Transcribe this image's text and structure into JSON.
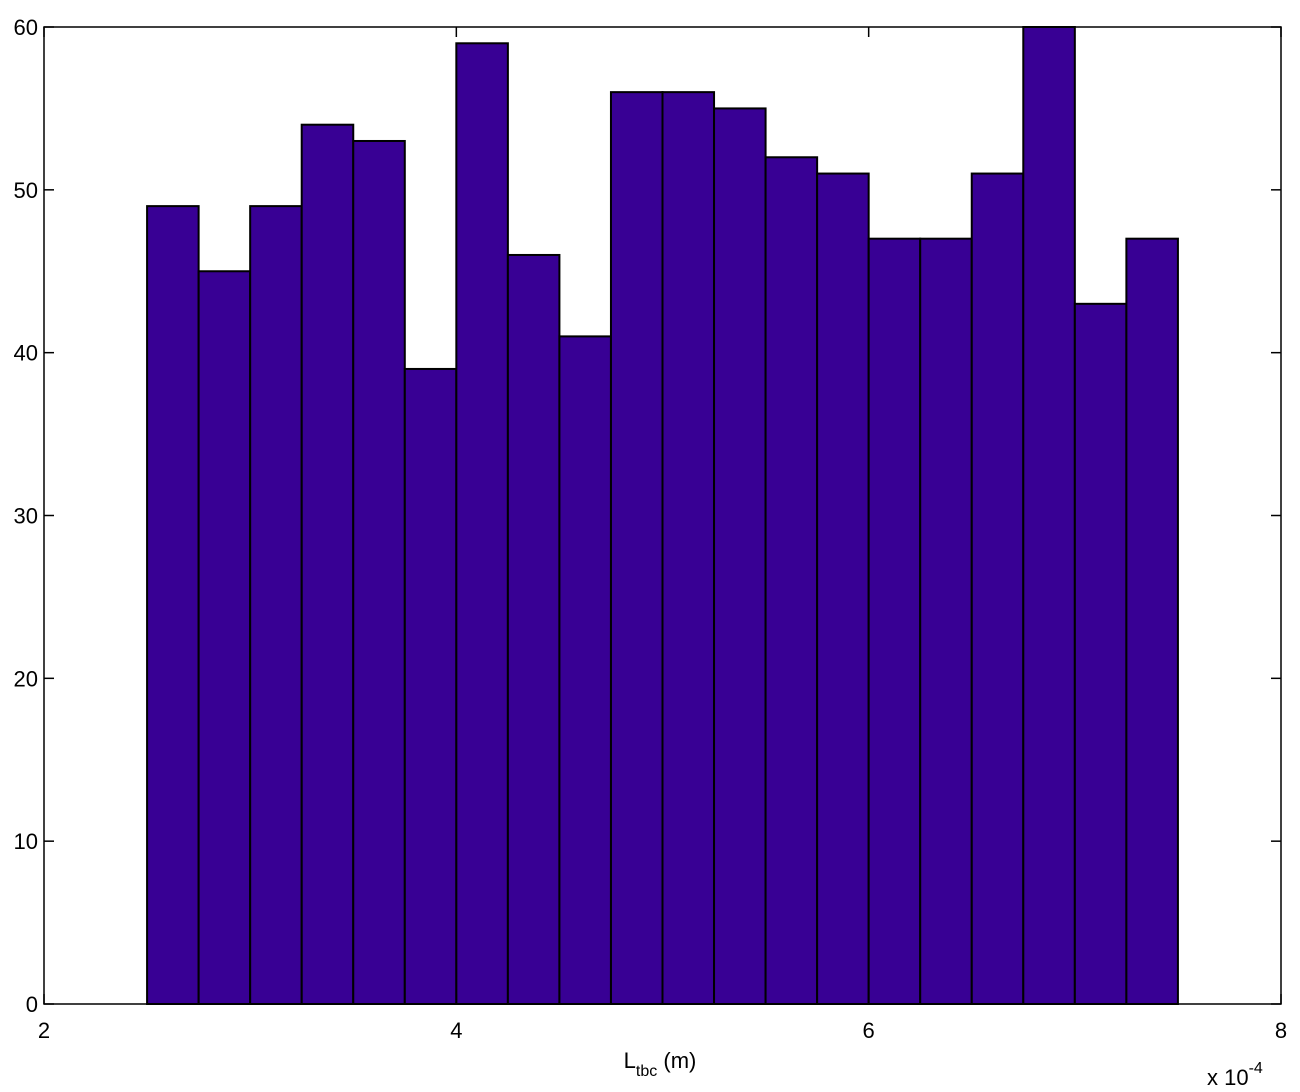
{
  "chart_data": {
    "type": "histogram",
    "bins": [
      2.5,
      2.75,
      3,
      3.25,
      3.5,
      3.75,
      4,
      4.25,
      4.5,
      4.75,
      5,
      5.25,
      5.5,
      5.75,
      6,
      6.25,
      6.5,
      6.75,
      7,
      7.25,
      7.5
    ],
    "counts": [
      49,
      45,
      49,
      54,
      53,
      39,
      59,
      46,
      41,
      56,
      56,
      55,
      52,
      51,
      47,
      47,
      51,
      60,
      43,
      47
    ],
    "color": "#380094",
    "xlim": [
      2,
      8
    ],
    "xticks": [
      2,
      4,
      6,
      8
    ],
    "ylim": [
      0,
      60
    ],
    "yticks": [
      0,
      10,
      20,
      30,
      40,
      50,
      60
    ],
    "xlabel": {
      "main": "L",
      "sub": "tbc",
      "rest": " (m)"
    },
    "x_multiplier": {
      "base": "x 10",
      "exponent": "-4"
    }
  }
}
